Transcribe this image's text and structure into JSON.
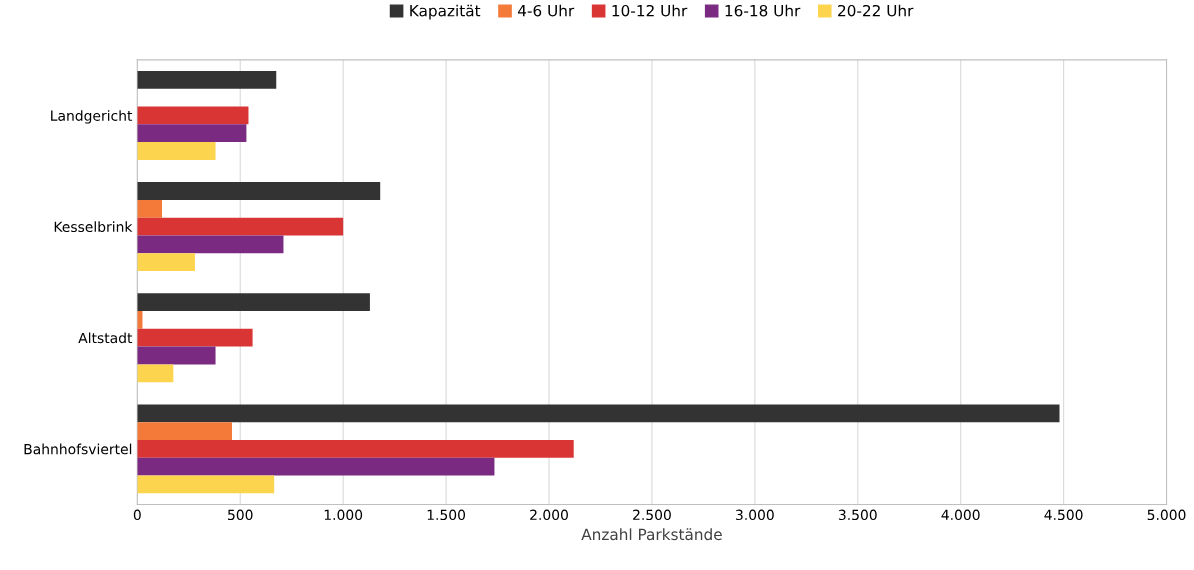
{
  "chart_data": {
    "type": "bar",
    "orientation": "horizontal",
    "xlabel": "Anzahl Parkstände",
    "categories": [
      "Landgericht",
      "Kesselbrink",
      "Altstadt",
      "Bahnhofsviertel"
    ],
    "series": [
      {
        "name": "Kapazität",
        "color": "#333333",
        "values": [
          675,
          1180,
          1130,
          4480
        ]
      },
      {
        "name": "4-6 Uhr",
        "color": "#f47a3a",
        "values": [
          0,
          120,
          25,
          460
        ]
      },
      {
        "name": "10-12 Uhr",
        "color": "#d93535",
        "values": [
          540,
          1000,
          560,
          2120
        ]
      },
      {
        "name": "16-18 Uhr",
        "color": "#7b2a82",
        "values": [
          530,
          710,
          380,
          1735
        ]
      },
      {
        "name": "20-22 Uhr",
        "color": "#fdd44e",
        "values": [
          380,
          280,
          175,
          665
        ]
      }
    ],
    "xlim": [
      0,
      5000
    ],
    "xticks": [
      0,
      500,
      {
        "value": 1000,
        "label": "1.000"
      },
      {
        "value": 1500,
        "label": "1.500"
      },
      {
        "value": 2000,
        "label": "2.000"
      },
      {
        "value": 2500,
        "label": "2.500"
      },
      {
        "value": 3000,
        "label": "3.000"
      },
      {
        "value": 3500,
        "label": "3.500"
      },
      {
        "value": 4000,
        "label": "4.000"
      },
      {
        "value": 4500,
        "label": "4.500"
      },
      {
        "value": 5000,
        "label": "5.000"
      }
    ],
    "grid": "x",
    "legend": "top"
  }
}
